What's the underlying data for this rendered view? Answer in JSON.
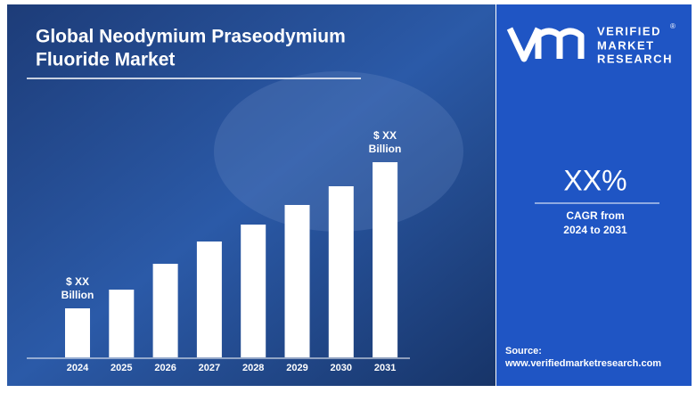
{
  "chart_data": {
    "type": "bar",
    "title_lines": [
      "Global Neodymium Praseodymium",
      "Fluoride Market"
    ],
    "categories": [
      "2024",
      "2025",
      "2026",
      "2027",
      "2028",
      "2029",
      "2030",
      "2031"
    ],
    "values": [
      55,
      76,
      105,
      130,
      149,
      171,
      192,
      219
    ],
    "color": "#ffffff",
    "ylim": [
      0,
      250
    ],
    "annotations": [
      [
        "$ XX",
        "Billion"
      ],
      [
        "$ XX",
        "Billion"
      ]
    ]
  },
  "brand": {
    "lines": [
      "VERIFIED",
      "MARKET",
      "RESEARCH"
    ],
    "mark": "®"
  },
  "cagr": {
    "value": "XX%",
    "lines": [
      "CAGR from",
      "2024 to 2031"
    ]
  },
  "source": {
    "label": "Source:",
    "url": "www.verifiedmarketresearch.com"
  }
}
